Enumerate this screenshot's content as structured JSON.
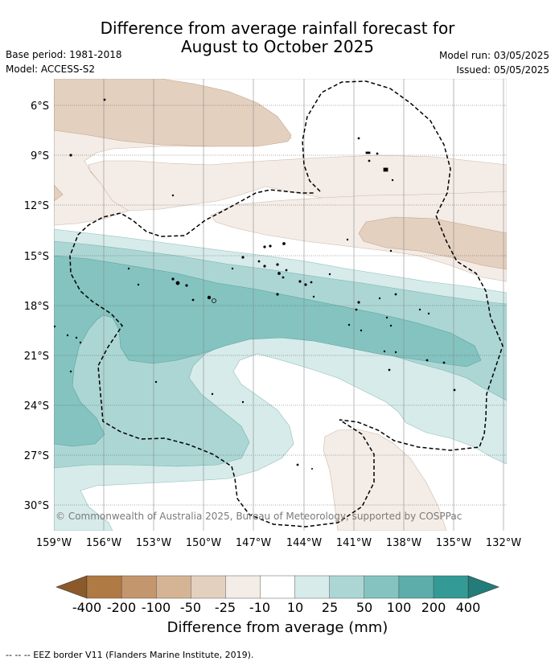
{
  "title_line1": "Difference from average rainfall forecast for",
  "title_line2": "August to October 2025",
  "meta": {
    "base_period": "Base period: 1981-2018",
    "model": "Model: ACCESS-S2",
    "model_run": "Model run: 03/05/2025",
    "issued": "Issued: 05/05/2025"
  },
  "lat_labels": [
    "6°S",
    "9°S",
    "12°S",
    "15°S",
    "18°S",
    "21°S",
    "24°S",
    "27°S",
    "30°S"
  ],
  "lon_labels": [
    "159°W",
    "156°W",
    "153°W",
    "150°W",
    "147°W",
    "144°W",
    "141°W",
    "138°W",
    "135°W",
    "132°W"
  ],
  "credit": "© Commonwealth of Australia 2025, Bureau of Meteorology, supported by COSPPac",
  "colorbar": {
    "title": "Difference from average (mm)",
    "ticks": [
      "-400",
      "-200",
      "-100",
      "-50",
      "-25",
      "-10",
      "10",
      "25",
      "50",
      "100",
      "200",
      "400"
    ],
    "colors": [
      "#8b5a2b",
      "#b07a45",
      "#c4966d",
      "#d5b496",
      "#e4d0bf",
      "#f4ece6",
      "#ffffff",
      "#d6ebea",
      "#acd6d4",
      "#84c3c0",
      "#5dadaa",
      "#349a96",
      "#237c79"
    ]
  },
  "legend_eez": "--  --  -- EEZ border V11 (Flanders Marine Institute, 2019)."
}
